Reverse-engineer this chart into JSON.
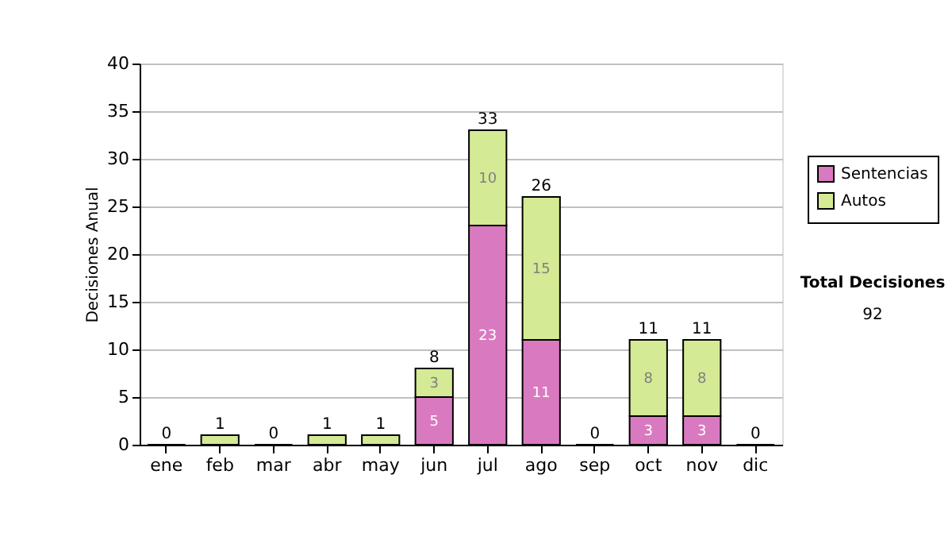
{
  "chart_data": {
    "type": "bar",
    "stacked": true,
    "ylabel": "Decisiones Anual",
    "categories": [
      "ene",
      "feb",
      "mar",
      "abr",
      "may",
      "jun",
      "jul",
      "ago",
      "sep",
      "oct",
      "nov",
      "dic"
    ],
    "series": [
      {
        "name": "Sentencias",
        "color": "#d97ac0",
        "values": [
          0,
          0,
          0,
          0,
          0,
          5,
          23,
          11,
          0,
          3,
          3,
          0
        ],
        "value_labels": [
          null,
          null,
          null,
          null,
          null,
          "5",
          "23",
          "11",
          null,
          "3",
          "3",
          null
        ]
      },
      {
        "name": "Autos",
        "color": "#d4ea94",
        "values": [
          0,
          1,
          0,
          1,
          1,
          3,
          10,
          15,
          0,
          8,
          8,
          0
        ],
        "value_labels": [
          null,
          null,
          null,
          null,
          null,
          "3",
          "10",
          "15",
          null,
          "8",
          "8",
          null
        ]
      }
    ],
    "totals": [
      "0",
      "1",
      "0",
      "1",
      "1",
      "8",
      "33",
      "26",
      "0",
      "11",
      "11",
      "0"
    ],
    "ylim": [
      0,
      40
    ],
    "yticks": [
      0,
      5,
      10,
      15,
      20,
      25,
      30,
      35,
      40
    ],
    "grid": "y",
    "legend": "right",
    "annotations": [
      "Total Decisiones",
      "92"
    ]
  }
}
